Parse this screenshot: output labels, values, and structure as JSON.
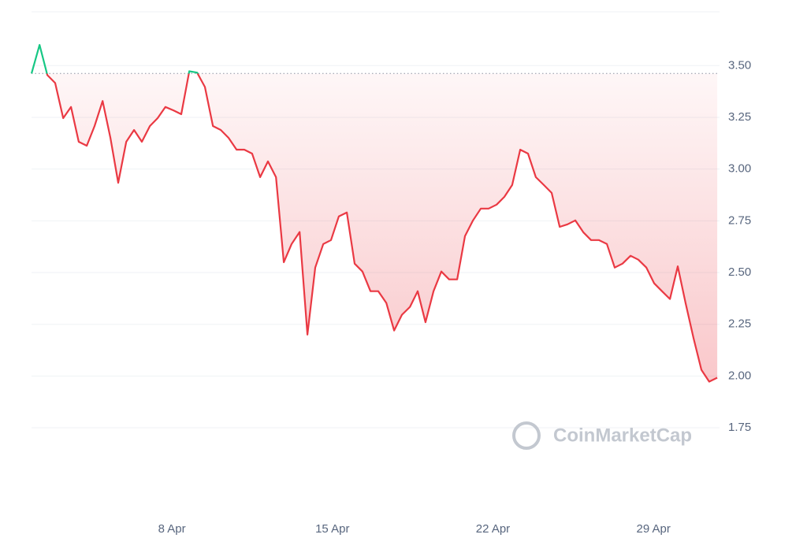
{
  "chart_data": {
    "type": "line",
    "watermark": "CoinMarketCap",
    "baseline": 3.462,
    "xlim": [
      1.88,
      31.88
    ],
    "ylim": [
      1.4,
      3.76
    ],
    "xticks": [
      {
        "value": 8,
        "label": "8 Apr"
      },
      {
        "value": 15,
        "label": "15 Apr"
      },
      {
        "value": 22,
        "label": "22 Apr"
      },
      {
        "value": 29,
        "label": "29 Apr"
      }
    ],
    "yticks": [
      1.75,
      {
        "value": 2.0,
        "label": "2.00"
      },
      2.25,
      {
        "value": 2.5,
        "label": "2.50"
      },
      2.75,
      {
        "value": 3.0,
        "label": "3.00"
      },
      3.25,
      {
        "value": 3.5,
        "label": "3.50"
      }
    ],
    "grid": true,
    "up_color": "#16c784",
    "down_color": "#ea3943",
    "series": [
      {
        "color": "#ea3943",
        "x": [
          1.88,
          2.23,
          2.57,
          2.91,
          3.26,
          3.6,
          3.94,
          4.29,
          4.63,
          4.98,
          5.32,
          5.66,
          6.01,
          6.35,
          6.69,
          7.04,
          7.38,
          7.72,
          8.07,
          8.41,
          8.76,
          9.1,
          9.44,
          9.79,
          10.13,
          10.47,
          10.82,
          11.16,
          11.5,
          11.85,
          12.19,
          12.54,
          12.88,
          13.22,
          13.57,
          13.91,
          14.25,
          14.6,
          14.94,
          15.28,
          15.63,
          15.97,
          16.31,
          16.66,
          17.0,
          17.35,
          17.69,
          18.03,
          18.38,
          18.72,
          19.06,
          19.41,
          19.75,
          20.09,
          20.44,
          20.78,
          21.13,
          21.47,
          21.81,
          22.16,
          22.5,
          22.84,
          23.19,
          23.53,
          23.87,
          24.22,
          24.56,
          24.91,
          25.25,
          25.59,
          25.94,
          26.28,
          26.62,
          26.97,
          27.31,
          27.65,
          28.0,
          28.34,
          28.69,
          29.03,
          29.37,
          29.72,
          30.06,
          30.4,
          30.75,
          31.09,
          31.43,
          31.78
        ],
        "values": [
          3.462,
          3.6,
          3.454,
          3.416,
          3.246,
          3.3,
          3.132,
          3.113,
          3.208,
          3.329,
          3.151,
          2.934,
          3.132,
          3.189,
          3.132,
          3.208,
          3.246,
          3.3,
          3.284,
          3.265,
          3.473,
          3.466,
          3.397,
          3.208,
          3.189,
          3.151,
          3.094,
          3.094,
          3.075,
          2.961,
          3.037,
          2.961,
          2.55,
          2.638,
          2.696,
          2.2,
          2.524,
          2.638,
          2.657,
          2.771,
          2.79,
          2.543,
          2.505,
          2.41,
          2.41,
          2.353,
          2.22,
          2.296,
          2.334,
          2.41,
          2.26,
          2.41,
          2.505,
          2.467,
          2.467,
          2.676,
          2.752,
          2.809,
          2.809,
          2.828,
          2.866,
          2.923,
          3.094,
          3.075,
          2.961,
          2.923,
          2.885,
          2.721,
          2.733,
          2.752,
          2.695,
          2.657,
          2.657,
          2.638,
          2.524,
          2.543,
          2.581,
          2.562,
          2.524,
          2.448,
          2.41,
          2.372,
          2.53,
          2.353,
          2.182,
          2.03,
          1.973,
          1.992
        ]
      }
    ]
  }
}
